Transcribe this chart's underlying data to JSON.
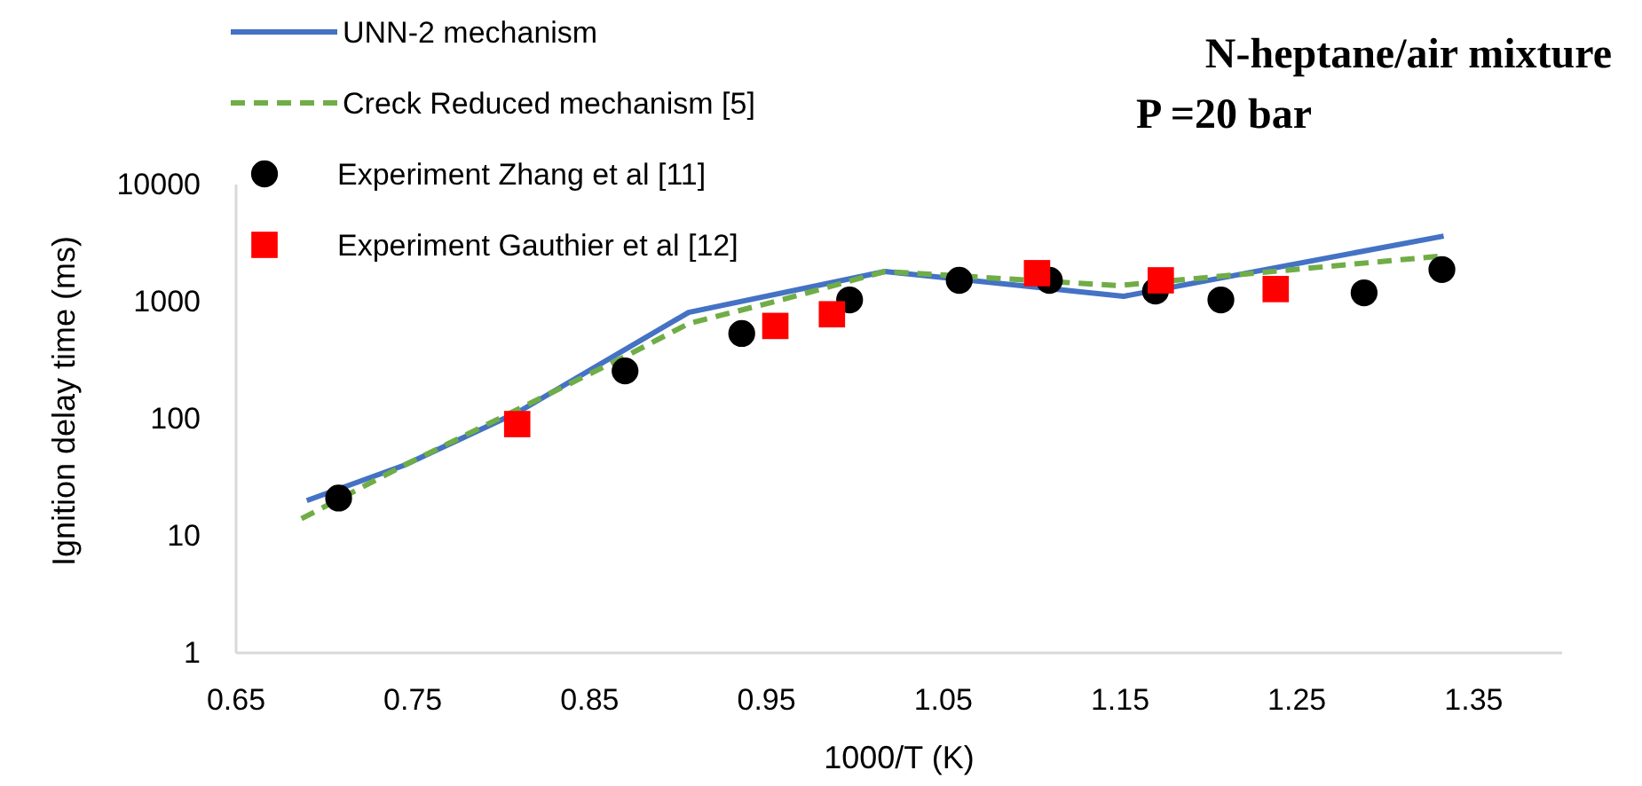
{
  "chart_data": {
    "type": "line",
    "title": "N-heptane/air mixture",
    "subtitle": "P =20 bar",
    "xlabel": "1000/T (K)",
    "ylabel": "Ignition delay time (ms)",
    "log": "y",
    "grid": false,
    "legend": "top left",
    "xlim": [
      0.65,
      1.4
    ],
    "xticks": [
      {
        "value": 0.65,
        "label": "0.65"
      },
      {
        "value": 0.75,
        "label": "0.75"
      },
      {
        "value": 0.85,
        "label": "0.85"
      },
      {
        "value": 0.95,
        "label": "0.95"
      },
      {
        "value": 1.05,
        "label": "1.05"
      },
      {
        "value": 1.15,
        "label": "1.15"
      },
      {
        "value": 1.25,
        "label": "1.25"
      },
      {
        "value": 1.35,
        "label": "1.35"
      }
    ],
    "ylim": [
      1,
      10000
    ],
    "yticks": [
      1,
      10,
      100,
      1000,
      10000
    ],
    "series": [
      {
        "name": "UNN-2 mechanism",
        "line_style": "solid",
        "marker": "none",
        "color": "#4472c4",
        "x": [
          0.69,
          0.745,
          0.81,
          0.906,
          1.017,
          1.152,
          1.333
        ],
        "values": [
          20,
          40,
          115,
          810,
          1810,
          1110,
          3630
        ]
      },
      {
        "name": "Creck Reduced mechanism [5]",
        "line_style": "dashed",
        "marker": "none",
        "color": "#70ad47",
        "x": [
          0.687,
          0.745,
          0.87,
          0.906,
          0.96,
          1.017,
          1.149,
          1.333
        ],
        "values": [
          14,
          40,
          340,
          650,
          1050,
          1810,
          1370,
          2460
        ]
      },
      {
        "name": "Experiment Zhang et al [11]",
        "type": "scatter",
        "marker": "circle",
        "color": "#000000",
        "x": [
          0.708,
          0.87,
          0.936,
          0.997,
          1.059,
          1.11,
          1.17,
          1.207,
          1.288,
          1.332
        ],
        "values": [
          21,
          256,
          534,
          1035,
          1520,
          1520,
          1230,
          1035,
          1190,
          1880
        ]
      },
      {
        "name": "Experiment Gauthier et al [12]",
        "type": "scatter",
        "marker": "square",
        "color": "#ff0000",
        "x": [
          0.809,
          0.955,
          0.987,
          1.103,
          1.173,
          1.238
        ],
        "values": [
          90,
          620,
          780,
          1750,
          1520,
          1280
        ]
      }
    ]
  }
}
